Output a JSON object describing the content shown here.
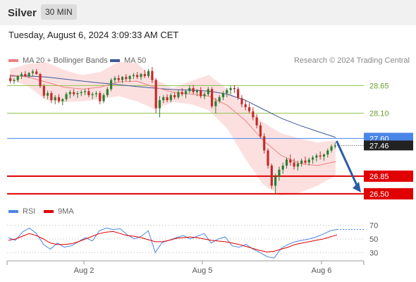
{
  "header": {
    "instrument": "Silver",
    "timeframe": "30 MIN"
  },
  "datetime": "Tuesday, August 6, 2024 3:09:33 AM CET",
  "legend": {
    "ma20_label": "MA 20 + Bollinger Bands",
    "ma50_label": "MA 50",
    "credit": "Research © 2024 Trading Central"
  },
  "rsi_legend": {
    "rsi_label": "RSI",
    "ma_label": "9MA"
  },
  "colors": {
    "ma20": "#f08080",
    "bollinger_fill": "#fbd5d5",
    "ma50": "#3b5998",
    "candle_up": "#2e7d32",
    "candle_down": "#c62828",
    "resistance": "#8bc34a",
    "pivot": "#4a86e8",
    "support": "#e00000",
    "projection_arrow": "#2a5ca8",
    "rsi": "#4a86e8",
    "rsi_ma": "#e00000"
  },
  "chart_data": [
    {
      "type": "candlestick",
      "x_tick_labels": [
        "Aug 2",
        "Aug 5",
        "Aug 6"
      ],
      "y_range": [
        26.4,
        28.95
      ],
      "levels": [
        {
          "value": 28.65,
          "label": "28.65",
          "kind": "resistance"
        },
        {
          "value": 28.1,
          "label": "28.10",
          "kind": "resistance"
        },
        {
          "value": 27.6,
          "label": "27.60",
          "kind": "pivot"
        },
        {
          "value": 26.85,
          "label": "26.85",
          "kind": "support"
        },
        {
          "value": 26.5,
          "label": "26.50",
          "kind": "support"
        }
      ],
      "last_price": {
        "value": 27.46,
        "label": "27.46"
      },
      "projection": {
        "from": 27.55,
        "to": 26.5
      },
      "candles": [
        [
          28.8,
          28.86,
          28.7,
          28.74
        ],
        [
          28.74,
          28.8,
          28.68,
          28.76
        ],
        [
          28.76,
          28.86,
          28.72,
          28.84
        ],
        [
          28.84,
          28.92,
          28.78,
          28.88
        ],
        [
          28.88,
          28.94,
          28.82,
          28.84
        ],
        [
          28.84,
          28.92,
          28.8,
          28.9
        ],
        [
          28.9,
          28.97,
          28.84,
          28.93
        ],
        [
          28.93,
          28.98,
          28.86,
          28.88
        ],
        [
          28.88,
          28.9,
          28.6,
          28.64
        ],
        [
          28.64,
          28.68,
          28.4,
          28.45
        ],
        [
          28.45,
          28.55,
          28.38,
          28.5
        ],
        [
          28.5,
          28.54,
          28.3,
          28.36
        ],
        [
          28.36,
          28.46,
          28.28,
          28.42
        ],
        [
          28.42,
          28.48,
          28.3,
          28.34
        ],
        [
          28.34,
          28.4,
          28.26,
          28.38
        ],
        [
          28.38,
          28.52,
          28.34,
          28.48
        ],
        [
          28.48,
          28.56,
          28.4,
          28.52
        ],
        [
          28.52,
          28.58,
          28.44,
          28.48
        ],
        [
          28.48,
          28.54,
          28.4,
          28.5
        ],
        [
          28.5,
          28.56,
          28.44,
          28.52
        ],
        [
          28.52,
          28.58,
          28.46,
          28.54
        ],
        [
          28.54,
          28.6,
          28.42,
          28.46
        ],
        [
          28.46,
          28.52,
          28.38,
          28.48
        ],
        [
          28.48,
          28.54,
          28.42,
          28.5
        ],
        [
          28.5,
          28.54,
          28.28,
          28.34
        ],
        [
          28.34,
          28.5,
          28.3,
          28.46
        ],
        [
          28.46,
          28.62,
          28.42,
          28.58
        ],
        [
          28.58,
          28.8,
          28.54,
          28.76
        ],
        [
          28.76,
          28.84,
          28.7,
          28.8
        ],
        [
          28.8,
          28.86,
          28.72,
          28.76
        ],
        [
          28.76,
          28.84,
          28.7,
          28.82
        ],
        [
          28.82,
          28.88,
          28.74,
          28.78
        ],
        [
          28.78,
          28.86,
          28.72,
          28.84
        ],
        [
          28.84,
          28.9,
          28.78,
          28.86
        ],
        [
          28.86,
          28.92,
          28.78,
          28.82
        ],
        [
          28.82,
          28.9,
          28.76,
          28.88
        ],
        [
          28.88,
          28.96,
          28.8,
          28.84
        ],
        [
          28.84,
          28.98,
          28.8,
          28.94
        ],
        [
          28.94,
          29.02,
          28.7,
          28.76
        ],
        [
          28.76,
          28.8,
          28.1,
          28.2
        ],
        [
          28.2,
          28.44,
          28.02,
          28.36
        ],
        [
          28.36,
          28.46,
          28.3,
          28.42
        ],
        [
          28.42,
          28.48,
          28.32,
          28.36
        ],
        [
          28.36,
          28.5,
          28.32,
          28.46
        ],
        [
          28.46,
          28.52,
          28.38,
          28.42
        ],
        [
          28.42,
          28.56,
          28.38,
          28.52
        ],
        [
          28.52,
          28.6,
          28.44,
          28.48
        ],
        [
          28.48,
          28.56,
          28.4,
          28.54
        ],
        [
          28.54,
          28.66,
          28.5,
          28.6
        ],
        [
          28.6,
          28.66,
          28.48,
          28.52
        ],
        [
          28.52,
          28.58,
          28.44,
          28.56
        ],
        [
          28.56,
          28.62,
          28.4,
          28.44
        ],
        [
          28.44,
          28.52,
          28.38,
          28.48
        ],
        [
          28.48,
          28.62,
          28.44,
          28.58
        ],
        [
          28.58,
          28.62,
          28.2,
          28.24
        ],
        [
          28.24,
          28.4,
          28.1,
          28.34
        ],
        [
          28.34,
          28.46,
          28.3,
          28.42
        ],
        [
          28.42,
          28.54,
          28.36,
          28.5
        ],
        [
          28.5,
          28.6,
          28.42,
          28.56
        ],
        [
          28.56,
          28.64,
          28.48,
          28.6
        ],
        [
          28.6,
          28.66,
          28.5,
          28.58
        ],
        [
          28.58,
          28.62,
          28.36,
          28.4
        ],
        [
          28.4,
          28.46,
          28.22,
          28.28
        ],
        [
          28.28,
          28.36,
          28.16,
          28.22
        ],
        [
          28.22,
          28.3,
          28.1,
          28.14
        ],
        [
          28.14,
          28.22,
          27.96,
          28.02
        ],
        [
          28.02,
          28.08,
          27.8,
          27.86
        ],
        [
          27.86,
          27.92,
          27.6,
          27.64
        ],
        [
          27.64,
          27.7,
          27.3,
          27.36
        ],
        [
          27.36,
          27.4,
          27.0,
          27.06
        ],
        [
          27.06,
          27.1,
          26.6,
          26.66
        ],
        [
          26.66,
          26.9,
          26.5,
          26.84
        ],
        [
          26.84,
          27.04,
          26.76,
          26.98
        ],
        [
          26.98,
          27.12,
          26.9,
          27.06
        ],
        [
          27.06,
          27.22,
          27.0,
          27.18
        ],
        [
          27.18,
          27.28,
          27.06,
          27.12
        ],
        [
          27.12,
          27.2,
          26.98,
          27.04
        ],
        [
          27.04,
          27.16,
          26.96,
          27.1
        ],
        [
          27.1,
          27.2,
          27.04,
          27.16
        ],
        [
          27.16,
          27.24,
          27.08,
          27.12
        ],
        [
          27.12,
          27.22,
          27.06,
          27.18
        ],
        [
          27.18,
          27.26,
          27.1,
          27.22
        ],
        [
          27.22,
          27.3,
          27.14,
          27.26
        ],
        [
          27.26,
          27.34,
          27.18,
          27.24
        ],
        [
          27.24,
          27.3,
          27.16,
          27.28
        ],
        [
          27.28,
          27.4,
          27.22,
          27.36
        ],
        [
          27.36,
          27.48,
          27.32,
          27.44
        ],
        [
          27.44,
          27.52,
          27.4,
          27.46
        ]
      ],
      "series": [
        {
          "name": "MA 20 + Bollinger Bands",
          "ma": [
            28.86,
            28.82,
            28.72,
            28.62,
            28.58,
            28.62,
            28.72,
            28.74,
            28.62,
            28.52,
            28.48,
            28.44,
            28.26,
            27.96,
            27.56,
            27.26,
            27.1,
            27.06,
            27.14
          ],
          "upper": [
            28.98,
            29.08,
            29.12,
            28.96,
            28.86,
            28.92,
            29.12,
            29.1,
            28.78,
            28.6,
            28.74,
            28.86,
            28.58,
            28.22,
            27.92,
            27.7,
            27.6,
            27.52,
            27.56
          ],
          "lower": [
            28.76,
            28.64,
            28.36,
            28.32,
            28.34,
            28.38,
            28.44,
            28.34,
            28.18,
            28.32,
            28.28,
            28.16,
            27.8,
            27.2,
            26.68,
            26.46,
            26.52,
            26.66,
            26.86
          ]
        },
        {
          "name": "MA 50",
          "values": [
            28.84,
            28.84,
            28.82,
            28.78,
            28.74,
            28.7,
            28.67,
            28.63,
            28.6,
            28.57,
            28.56,
            28.54,
            28.48,
            28.36,
            28.18,
            28.0,
            27.86,
            27.74,
            27.62
          ]
        }
      ]
    },
    {
      "type": "line",
      "name": "RSI",
      "y_range": [
        20,
        80
      ],
      "y_ticks": [
        70,
        50,
        30
      ],
      "series": [
        {
          "name": "RSI",
          "values": [
            52,
            48,
            60,
            66,
            58,
            42,
            35,
            44,
            38,
            40,
            46,
            52,
            47,
            62,
            66,
            64,
            65,
            56,
            50,
            54,
            62,
            30,
            45,
            48,
            52,
            55,
            50,
            54,
            58,
            44,
            50,
            53,
            40,
            38,
            42,
            35,
            30,
            24,
            22,
            36,
            42,
            46,
            48,
            50,
            53,
            57,
            62,
            64
          ]
        },
        {
          "name": "9MA",
          "values": [
            48,
            50,
            54,
            58,
            55,
            50,
            44,
            42,
            42,
            43,
            46,
            50,
            54,
            58,
            60,
            61,
            58,
            55,
            54,
            52,
            49,
            46,
            46,
            48,
            51,
            52,
            53,
            52,
            50,
            48,
            47,
            46,
            44,
            42,
            39,
            36,
            33,
            31,
            32,
            35,
            38,
            42,
            44,
            46,
            48,
            50,
            53,
            56
          ]
        }
      ]
    }
  ]
}
